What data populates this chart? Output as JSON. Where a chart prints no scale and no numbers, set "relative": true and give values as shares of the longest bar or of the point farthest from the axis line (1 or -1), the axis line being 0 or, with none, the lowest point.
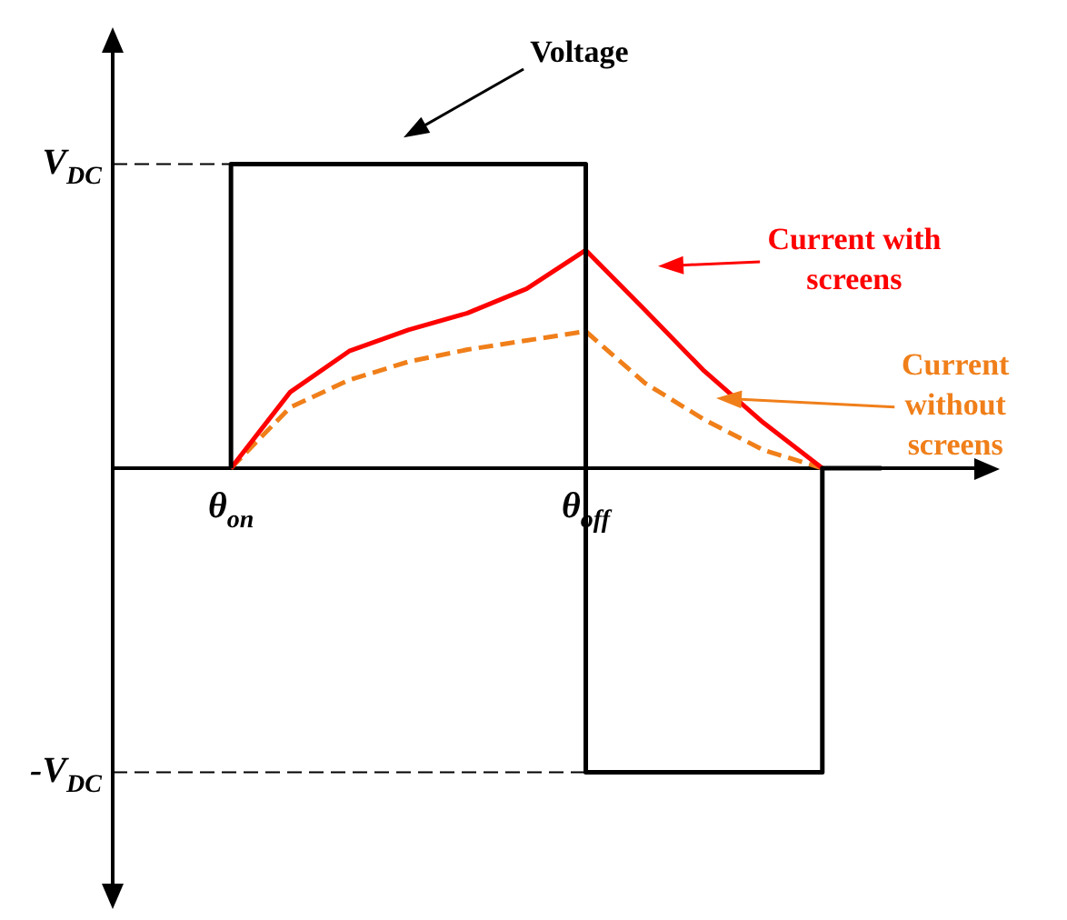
{
  "chart_data": {
    "type": "line",
    "relative": true,
    "categories": [
      null,
      null,
      "θ$_{on}$",
      null,
      null,
      null,
      null,
      null,
      "θ$_{off}$",
      null,
      null,
      null,
      null,
      null,
      null,
      null
    ],
    "series": [
      {
        "type": "step",
        "color": "#000000",
        "values": [
          null,
          null,
          0,
          1,
          1,
          1,
          1,
          1,
          1,
          -1,
          -1,
          -1,
          -1,
          0,
          null,
          null
        ]
      },
      {
        "color": "#ff0000",
        "values": [
          null,
          null,
          0,
          0.25,
          0.385,
          0.455,
          0.51,
          0.59,
          0.717,
          0.52,
          0.32,
          0.15,
          0,
          null,
          null,
          null
        ]
      },
      {
        "color": "#f07f1a",
        "line_style": "dashed",
        "values": [
          null,
          null,
          0,
          0.2,
          0.29,
          0.35,
          0.39,
          0.42,
          0.45,
          0.28,
          0.16,
          0.06,
          0,
          null,
          null,
          null
        ]
      }
    ],
    "ref_lines": [
      {
        "axis": "y",
        "value": 1,
        "label": "V$_{DC}$",
        "line_style": "dashed"
      },
      {
        "axis": "y",
        "value": -1,
        "label": "-V$_{DC}$",
        "line_style": "dashed"
      }
    ],
    "annotations": [
      "Voltage",
      "Current with screens",
      "Current without screens"
    ],
    "marker": "none",
    "line_style": "solid"
  }
}
